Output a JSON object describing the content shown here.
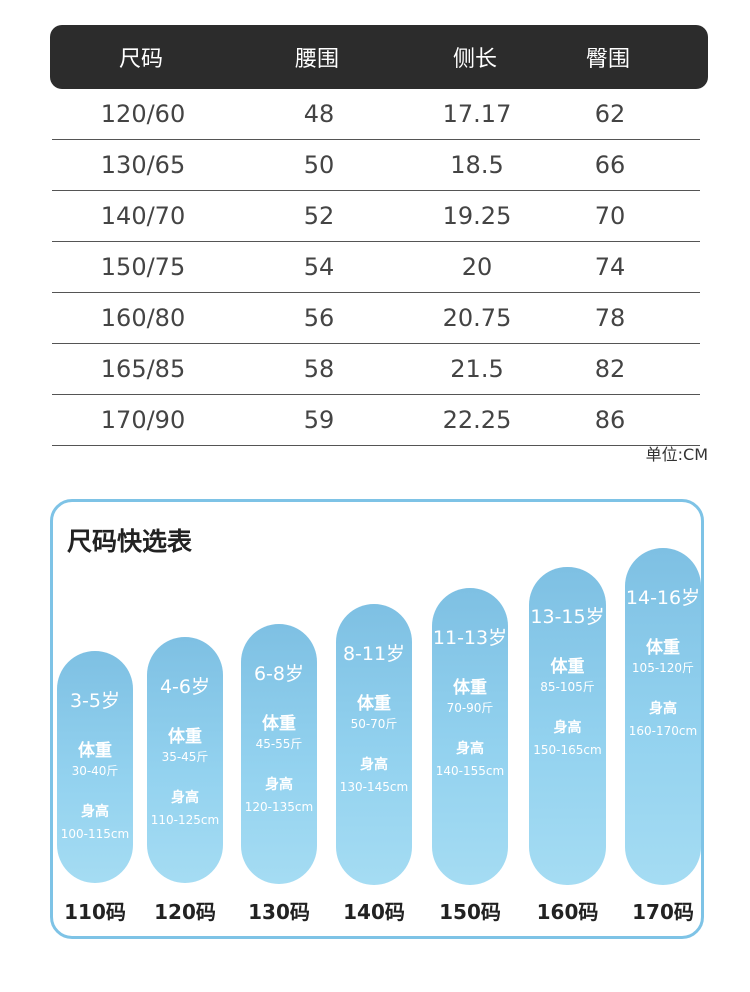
{
  "table": {
    "headers": [
      "尺码",
      "腰围",
      "侧长",
      "臀围"
    ],
    "rows": [
      [
        "120/60",
        "48",
        "17.17",
        "62"
      ],
      [
        "130/65",
        "50",
        "18.5",
        "66"
      ],
      [
        "140/70",
        "52",
        "19.25",
        "70"
      ],
      [
        "150/75",
        "54",
        "20",
        "74"
      ],
      [
        "160/80",
        "56",
        "20.75",
        "78"
      ],
      [
        "165/85",
        "58",
        "21.5",
        "82"
      ],
      [
        "170/90",
        "59",
        "22.25",
        "86"
      ]
    ],
    "unit": "单位:CM"
  },
  "quick": {
    "title": "尺码快选表",
    "weight_label": "体重",
    "height_label": "身高",
    "items": [
      {
        "age": "3-5岁",
        "weight": "30-40斤",
        "height": "100-115cm",
        "size": "110码"
      },
      {
        "age": "4-6岁",
        "weight": "35-45斤",
        "height": "110-125cm",
        "size": "120码"
      },
      {
        "age": "6-8岁",
        "weight": "45-55斤",
        "height": "120-135cm",
        "size": "130码"
      },
      {
        "age": "8-11岁",
        "weight": "50-70斤",
        "height": "130-145cm",
        "size": "140码"
      },
      {
        "age": "11-13岁",
        "weight": "70-90斤",
        "height": "140-155cm",
        "size": "150码"
      },
      {
        "age": "13-15岁",
        "weight": "85-105斤",
        "height": "150-165cm",
        "size": "160码"
      },
      {
        "age": "14-16岁",
        "weight": "105-120斤",
        "height": "160-170cm",
        "size": "170码"
      }
    ]
  }
}
